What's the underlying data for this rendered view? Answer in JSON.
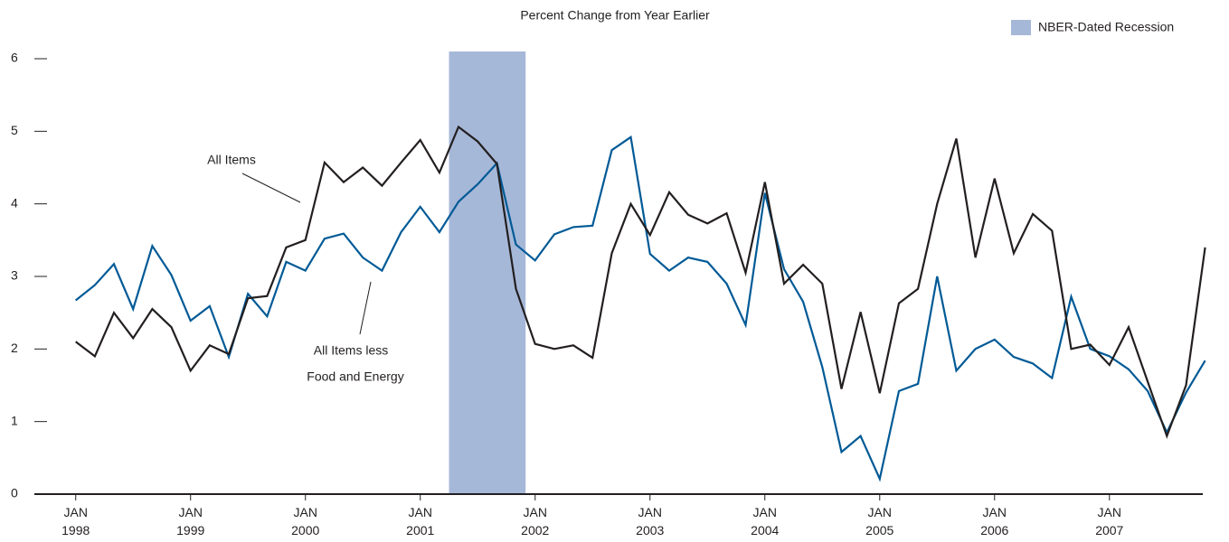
{
  "chart_data": {
    "type": "line",
    "title": "Percent Change from Year Earlier",
    "x": [
      1998,
      1998.167,
      1998.333,
      1998.5,
      1998.667,
      1998.833,
      1999,
      1999.167,
      1999.333,
      1999.5,
      1999.667,
      1999.833,
      2000,
      2000.167,
      2000.333,
      2000.5,
      2000.667,
      2000.833,
      2001,
      2001.167,
      2001.333,
      2001.5,
      2001.667,
      2001.833,
      2002,
      2002.167,
      2002.333,
      2002.5,
      2002.667,
      2002.833,
      2003,
      2003.167,
      2003.333,
      2003.5,
      2003.667,
      2003.833,
      2004,
      2004.167,
      2004.333,
      2004.5,
      2004.667,
      2004.833,
      2005,
      2005.167,
      2005.333,
      2005.5,
      2005.667,
      2005.833,
      2006,
      2006.167,
      2006.333,
      2006.5,
      2006.667,
      2006.833,
      2007,
      2007.167,
      2007.333,
      2007.5,
      2007.667,
      2007.833
    ],
    "series": [
      {
        "name": "All Items",
        "color": "#231f20",
        "values": [
          2.1,
          1.9,
          2.5,
          2.15,
          2.55,
          2.3,
          1.7,
          2.05,
          1.93,
          2.7,
          2.73,
          3.4,
          3.5,
          4.57,
          4.3,
          4.5,
          4.25,
          4.57,
          4.88,
          4.43,
          5.06,
          4.86,
          4.55,
          2.83,
          2.07,
          2.0,
          2.05,
          1.88,
          3.32,
          4.0,
          3.57,
          4.16,
          3.85,
          3.73,
          3.87,
          3.05,
          4.3,
          2.9,
          3.16,
          2.9,
          1.45,
          2.51,
          1.39,
          2.63,
          2.83,
          4.0,
          4.9,
          3.26,
          4.35,
          3.32,
          3.86,
          3.63,
          2.0,
          2.06,
          1.78,
          2.3,
          1.55,
          0.8,
          1.5,
          3.4
        ]
      },
      {
        "name": "All Items less Food and Energy",
        "color": "#005a96",
        "values": [
          2.67,
          2.88,
          3.17,
          2.55,
          3.42,
          3.02,
          2.39,
          2.59,
          1.89,
          2.76,
          2.45,
          3.2,
          3.08,
          3.52,
          3.59,
          3.26,
          3.08,
          3.61,
          3.96,
          3.61,
          4.03,
          4.27,
          4.56,
          3.44,
          3.22,
          3.58,
          3.68,
          3.7,
          4.74,
          4.92,
          3.31,
          3.08,
          3.26,
          3.2,
          2.9,
          2.33,
          4.15,
          3.1,
          2.65,
          1.75,
          0.58,
          0.8,
          0.21,
          1.42,
          1.52,
          3.0,
          1.7,
          2.0,
          2.13,
          1.89,
          1.8,
          1.6,
          2.72,
          2.0,
          1.9,
          1.72,
          1.42,
          0.85,
          1.4,
          1.84
        ]
      }
    ],
    "annotations": [
      {
        "lines": [
          "All Items"
        ]
      },
      {
        "lines": [
          "All Items less",
          "Food and Energy"
        ]
      }
    ],
    "recession": {
      "label": "NBER-Dated Recession",
      "start": 2001.25,
      "end": 2001.917,
      "color": "#a6b8d8"
    },
    "xlim": [
      1997.64,
      2007.86
    ],
    "xticks": [
      {
        "value": 1998,
        "label": "JAN\n1998"
      },
      {
        "value": 1999,
        "label": "JAN\n1999"
      },
      {
        "value": 2000,
        "label": "JAN\n2000"
      },
      {
        "value": 2001,
        "label": "JAN\n2001"
      },
      {
        "value": 2002,
        "label": "JAN\n2002"
      },
      {
        "value": 2003,
        "label": "JAN\n2003"
      },
      {
        "value": 2004,
        "label": "JAN\n2004"
      },
      {
        "value": 2005,
        "label": "JAN\n2005"
      },
      {
        "value": 2006,
        "label": "JAN\n2006"
      },
      {
        "value": 2007,
        "label": "JAN\n2007"
      }
    ],
    "ylim": [
      0,
      6
    ],
    "yticks": [
      0,
      1,
      2,
      3,
      4,
      5,
      6
    ],
    "grid": false
  }
}
